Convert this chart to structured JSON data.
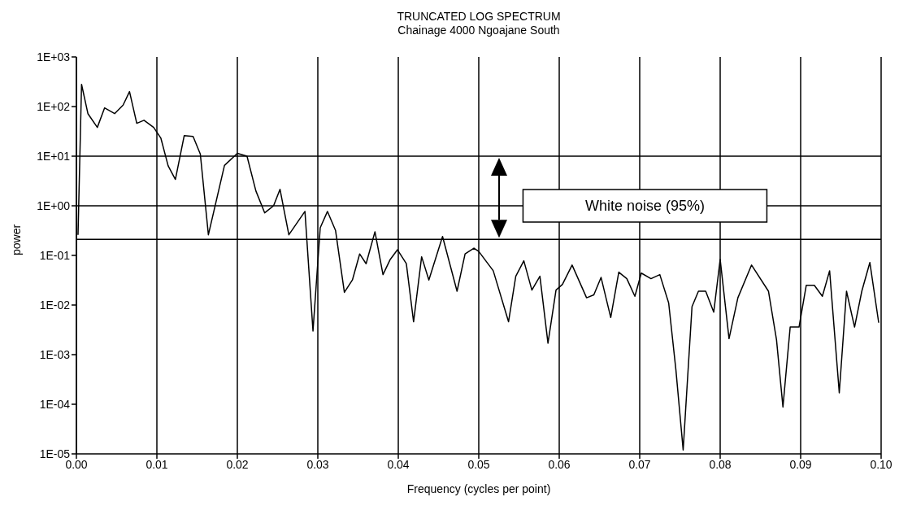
{
  "chart_data": {
    "type": "line",
    "title": "TRUNCATED LOG SPECTRUM",
    "subtitle": "Chainage 4000 Ngoajane South",
    "xlabel": "Frequency (cycles per point)",
    "ylabel": "power",
    "x": [
      0.0002,
      0.00064,
      0.00143,
      0.0026,
      0.0035,
      0.00475,
      0.0058,
      0.0066,
      0.0075,
      0.0084,
      0.0096,
      0.0105,
      0.0114,
      0.0123,
      0.0134,
      0.0145,
      0.0154,
      0.0164,
      0.0184,
      0.02,
      0.0212,
      0.0223,
      0.0234,
      0.0245,
      0.0253,
      0.0264,
      0.0284,
      0.0294,
      0.0303,
      0.0312,
      0.0322,
      0.0333,
      0.0343,
      0.0352,
      0.036,
      0.0371,
      0.0381,
      0.039,
      0.0399,
      0.041,
      0.0419,
      0.0429,
      0.0438,
      0.0455,
      0.0473,
      0.0483,
      0.0494,
      0.05,
      0.0518,
      0.0537,
      0.0546,
      0.0556,
      0.0566,
      0.0576,
      0.0586,
      0.0596,
      0.0604,
      0.0616,
      0.0634,
      0.0643,
      0.0652,
      0.0664,
      0.0674,
      0.0684,
      0.0694,
      0.0702,
      0.0714,
      0.0725,
      0.0736,
      0.0745,
      0.0754,
      0.0765,
      0.0773,
      0.0782,
      0.0792,
      0.08,
      0.0811,
      0.0822,
      0.0839,
      0.086,
      0.087,
      0.0878,
      0.0887,
      0.0898,
      0.0907,
      0.0917,
      0.0927,
      0.0936,
      0.0948,
      0.0957,
      0.0967,
      0.0976,
      0.0986,
      0.0997
    ],
    "series": [
      {
        "color": "#000000",
        "values": [
          0.26,
          280,
          72,
          38,
          94,
          72,
          107,
          200,
          46,
          53,
          38,
          23,
          6.4,
          3.4,
          26,
          25,
          11,
          0.26,
          6.5,
          11.4,
          10,
          2.0,
          0.72,
          1.0,
          2.15,
          0.26,
          0.77,
          0.003,
          0.36,
          0.77,
          0.32,
          0.018,
          0.032,
          0.107,
          0.068,
          0.3,
          0.041,
          0.083,
          0.13,
          0.068,
          0.0046,
          0.094,
          0.032,
          0.24,
          0.019,
          0.107,
          0.14,
          0.12,
          0.049,
          0.0046,
          0.038,
          0.078,
          0.02,
          0.038,
          0.0017,
          0.02,
          0.026,
          0.064,
          0.014,
          0.016,
          0.036,
          0.0056,
          0.046,
          0.034,
          0.015,
          0.044,
          0.034,
          0.041,
          0.011,
          0.00049,
          1.2e-05,
          0.0093,
          0.019,
          0.019,
          0.0072,
          0.083,
          0.0021,
          0.014,
          0.064,
          0.019,
          0.002,
          8.8e-05,
          0.0036,
          0.0036,
          0.025,
          0.025,
          0.015,
          0.049,
          0.00017,
          0.019,
          0.0036,
          0.019,
          0.072,
          0.0044
        ]
      }
    ],
    "xlim": [
      0,
      0.1
    ],
    "xticks": [
      {
        "value": 0,
        "label": "0.00"
      },
      {
        "value": 0.01,
        "label": "0.01"
      },
      {
        "value": 0.02,
        "label": "0.02"
      },
      {
        "value": 0.03,
        "label": "0.03"
      },
      {
        "value": 0.04,
        "label": "0.04"
      },
      {
        "value": 0.05,
        "label": "0.05"
      },
      {
        "value": 0.06,
        "label": "0.06"
      },
      {
        "value": 0.07,
        "label": "0.07"
      },
      {
        "value": 0.08,
        "label": "0.08"
      },
      {
        "value": 0.09,
        "label": "0.09"
      },
      {
        "value": 0.1,
        "label": "0.10"
      }
    ],
    "ylim": [
      1e-05,
      1000
    ],
    "yticks": [
      {
        "value": 1e-05,
        "label": "1E-05"
      },
      {
        "value": 0.0001,
        "label": "1E-04"
      },
      {
        "value": 0.001,
        "label": "1E-03"
      },
      {
        "value": 0.01,
        "label": "1E-02"
      },
      {
        "value": 0.1,
        "label": "1E-01"
      },
      {
        "value": 1,
        "label": "1E+00"
      },
      {
        "value": 10,
        "label": "1E+01"
      },
      {
        "value": 100,
        "label": "1E+02"
      },
      {
        "value": 1000,
        "label": "1E+03"
      }
    ],
    "log": "y",
    "grid": "x",
    "legend": false,
    "marker": "none",
    "line_style": "solid",
    "ref_lines": [
      {
        "axis": "y",
        "value": 10,
        "color": "#000000"
      },
      {
        "axis": "y",
        "value": 1,
        "label": "White noise (95%)",
        "color": "#000000"
      },
      {
        "axis": "y",
        "value": 0.21,
        "color": "#000000"
      }
    ]
  }
}
